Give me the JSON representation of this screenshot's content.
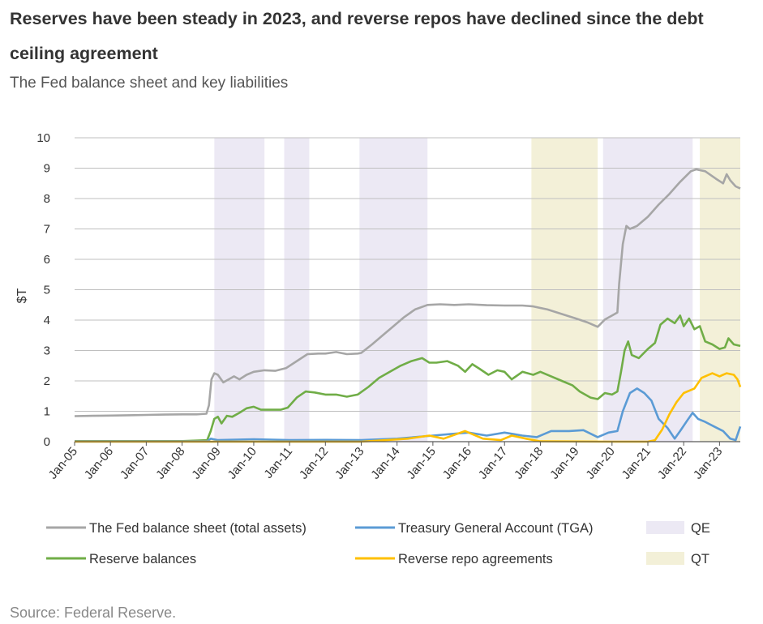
{
  "header": {
    "title": "Reserves have been steady in 2023, and reverse repos have declined since the debt ceiling agreement",
    "subtitle": "The Fed balance sheet and key liabilities"
  },
  "footer": {
    "source": "Source: Federal Reserve."
  },
  "chart_data": {
    "type": "line",
    "title": "",
    "ylabel": "$T",
    "ylim": [
      0,
      10
    ],
    "yticks": [
      0,
      1,
      2,
      3,
      4,
      5,
      6,
      7,
      8,
      9,
      10
    ],
    "xlim": [
      2005.0,
      2023.58
    ],
    "xticks": [
      {
        "x": 2005,
        "label": "Jan-05"
      },
      {
        "x": 2006,
        "label": "Jan-06"
      },
      {
        "x": 2007,
        "label": "Jan-07"
      },
      {
        "x": 2008,
        "label": "Jan-08"
      },
      {
        "x": 2009,
        "label": "Jan-09"
      },
      {
        "x": 2010,
        "label": "Jan-10"
      },
      {
        "x": 2011,
        "label": "Jan-11"
      },
      {
        "x": 2012,
        "label": "Jan-12"
      },
      {
        "x": 2013,
        "label": "Jan-13"
      },
      {
        "x": 2014,
        "label": "Jan-14"
      },
      {
        "x": 2015,
        "label": "Jan-15"
      },
      {
        "x": 2016,
        "label": "Jan-16"
      },
      {
        "x": 2017,
        "label": "Jan-17"
      },
      {
        "x": 2018,
        "label": "Jan-18"
      },
      {
        "x": 2019,
        "label": "Jan-19"
      },
      {
        "x": 2020,
        "label": "Jan-20"
      },
      {
        "x": 2021,
        "label": "Jan-21"
      },
      {
        "x": 2022,
        "label": "Jan-22"
      },
      {
        "x": 2023,
        "label": "Jan-23"
      }
    ],
    "grid": true,
    "legend_position": "bottom",
    "shaded_periods": [
      {
        "name": "QE",
        "color": "#ece9f4",
        "ranges": [
          [
            2008.9,
            2010.3
          ],
          [
            2010.85,
            2011.55
          ],
          [
            2012.95,
            2014.85
          ],
          [
            2019.75,
            2022.25
          ]
        ]
      },
      {
        "name": "QT",
        "color": "#f3f0d8",
        "ranges": [
          [
            2017.75,
            2019.6
          ],
          [
            2022.45,
            2023.58
          ]
        ]
      }
    ],
    "series": [
      {
        "name": "The Fed balance sheet (total assets)",
        "color": "#a6a6a6",
        "points": [
          [
            2005.0,
            0.84
          ],
          [
            2005.5,
            0.85
          ],
          [
            2006.0,
            0.86
          ],
          [
            2006.5,
            0.87
          ],
          [
            2007.0,
            0.88
          ],
          [
            2007.5,
            0.89
          ],
          [
            2008.0,
            0.9
          ],
          [
            2008.4,
            0.9
          ],
          [
            2008.68,
            0.92
          ],
          [
            2008.75,
            1.2
          ],
          [
            2008.82,
            2.05
          ],
          [
            2008.9,
            2.25
          ],
          [
            2009.0,
            2.2
          ],
          [
            2009.15,
            1.95
          ],
          [
            2009.3,
            2.05
          ],
          [
            2009.45,
            2.15
          ],
          [
            2009.6,
            2.05
          ],
          [
            2009.8,
            2.2
          ],
          [
            2010.0,
            2.3
          ],
          [
            2010.3,
            2.35
          ],
          [
            2010.6,
            2.33
          ],
          [
            2010.9,
            2.42
          ],
          [
            2011.2,
            2.65
          ],
          [
            2011.5,
            2.88
          ],
          [
            2011.8,
            2.9
          ],
          [
            2012.0,
            2.9
          ],
          [
            2012.3,
            2.95
          ],
          [
            2012.6,
            2.88
          ],
          [
            2012.9,
            2.9
          ],
          [
            2013.0,
            2.92
          ],
          [
            2013.3,
            3.2
          ],
          [
            2013.6,
            3.5
          ],
          [
            2013.9,
            3.8
          ],
          [
            2014.2,
            4.1
          ],
          [
            2014.5,
            4.35
          ],
          [
            2014.85,
            4.5
          ],
          [
            2015.2,
            4.52
          ],
          [
            2015.6,
            4.5
          ],
          [
            2016.0,
            4.52
          ],
          [
            2016.5,
            4.49
          ],
          [
            2017.0,
            4.48
          ],
          [
            2017.5,
            4.48
          ],
          [
            2017.8,
            4.45
          ],
          [
            2018.2,
            4.35
          ],
          [
            2018.6,
            4.2
          ],
          [
            2019.0,
            4.05
          ],
          [
            2019.3,
            3.93
          ],
          [
            2019.6,
            3.78
          ],
          [
            2019.8,
            4.02
          ],
          [
            2020.0,
            4.15
          ],
          [
            2020.15,
            4.25
          ],
          [
            2020.2,
            5.2
          ],
          [
            2020.3,
            6.5
          ],
          [
            2020.4,
            7.1
          ],
          [
            2020.5,
            7.0
          ],
          [
            2020.7,
            7.1
          ],
          [
            2021.0,
            7.4
          ],
          [
            2021.3,
            7.8
          ],
          [
            2021.6,
            8.15
          ],
          [
            2021.9,
            8.55
          ],
          [
            2022.2,
            8.9
          ],
          [
            2022.35,
            8.96
          ],
          [
            2022.6,
            8.9
          ],
          [
            2022.9,
            8.65
          ],
          [
            2023.1,
            8.5
          ],
          [
            2023.2,
            8.8
          ],
          [
            2023.3,
            8.6
          ],
          [
            2023.45,
            8.4
          ],
          [
            2023.58,
            8.33
          ]
        ]
      },
      {
        "name": "Reserve balances",
        "color": "#70ad47",
        "points": [
          [
            2005.0,
            0.02
          ],
          [
            2006.0,
            0.02
          ],
          [
            2007.0,
            0.02
          ],
          [
            2008.0,
            0.02
          ],
          [
            2008.7,
            0.05
          ],
          [
            2008.8,
            0.35
          ],
          [
            2008.9,
            0.75
          ],
          [
            2009.0,
            0.82
          ],
          [
            2009.1,
            0.6
          ],
          [
            2009.25,
            0.85
          ],
          [
            2009.4,
            0.82
          ],
          [
            2009.6,
            0.95
          ],
          [
            2009.8,
            1.1
          ],
          [
            2010.0,
            1.15
          ],
          [
            2010.2,
            1.05
          ],
          [
            2010.5,
            1.05
          ],
          [
            2010.75,
            1.05
          ],
          [
            2010.95,
            1.12
          ],
          [
            2011.2,
            1.45
          ],
          [
            2011.45,
            1.65
          ],
          [
            2011.7,
            1.62
          ],
          [
            2012.0,
            1.55
          ],
          [
            2012.3,
            1.55
          ],
          [
            2012.6,
            1.48
          ],
          [
            2012.9,
            1.55
          ],
          [
            2013.2,
            1.8
          ],
          [
            2013.5,
            2.1
          ],
          [
            2013.8,
            2.3
          ],
          [
            2014.1,
            2.5
          ],
          [
            2014.4,
            2.65
          ],
          [
            2014.7,
            2.75
          ],
          [
            2014.9,
            2.6
          ],
          [
            2015.1,
            2.6
          ],
          [
            2015.4,
            2.65
          ],
          [
            2015.7,
            2.5
          ],
          [
            2015.9,
            2.3
          ],
          [
            2016.1,
            2.55
          ],
          [
            2016.3,
            2.4
          ],
          [
            2016.55,
            2.2
          ],
          [
            2016.8,
            2.35
          ],
          [
            2017.0,
            2.3
          ],
          [
            2017.2,
            2.05
          ],
          [
            2017.5,
            2.3
          ],
          [
            2017.8,
            2.2
          ],
          [
            2018.0,
            2.3
          ],
          [
            2018.3,
            2.15
          ],
          [
            2018.6,
            2.0
          ],
          [
            2018.9,
            1.85
          ],
          [
            2019.1,
            1.65
          ],
          [
            2019.4,
            1.45
          ],
          [
            2019.6,
            1.4
          ],
          [
            2019.8,
            1.6
          ],
          [
            2020.0,
            1.55
          ],
          [
            2020.15,
            1.65
          ],
          [
            2020.25,
            2.3
          ],
          [
            2020.35,
            3.0
          ],
          [
            2020.45,
            3.3
          ],
          [
            2020.55,
            2.85
          ],
          [
            2020.75,
            2.75
          ],
          [
            2021.0,
            3.05
          ],
          [
            2021.2,
            3.25
          ],
          [
            2021.35,
            3.85
          ],
          [
            2021.55,
            4.05
          ],
          [
            2021.75,
            3.9
          ],
          [
            2021.9,
            4.15
          ],
          [
            2022.0,
            3.8
          ],
          [
            2022.15,
            4.05
          ],
          [
            2022.3,
            3.7
          ],
          [
            2022.45,
            3.8
          ],
          [
            2022.6,
            3.3
          ],
          [
            2022.8,
            3.2
          ],
          [
            2023.0,
            3.05
          ],
          [
            2023.15,
            3.1
          ],
          [
            2023.25,
            3.4
          ],
          [
            2023.4,
            3.2
          ],
          [
            2023.58,
            3.15
          ]
        ]
      },
      {
        "name": "Treasury General Account (TGA)",
        "color": "#5b9bd5",
        "points": [
          [
            2005.0,
            0.01
          ],
          [
            2008.7,
            0.01
          ],
          [
            2008.8,
            0.1
          ],
          [
            2009.0,
            0.05
          ],
          [
            2010.0,
            0.08
          ],
          [
            2011.0,
            0.05
          ],
          [
            2012.0,
            0.06
          ],
          [
            2013.0,
            0.05
          ],
          [
            2014.0,
            0.1
          ],
          [
            2015.0,
            0.2
          ],
          [
            2015.5,
            0.25
          ],
          [
            2016.0,
            0.3
          ],
          [
            2016.5,
            0.2
          ],
          [
            2017.0,
            0.3
          ],
          [
            2017.5,
            0.2
          ],
          [
            2017.9,
            0.15
          ],
          [
            2018.3,
            0.35
          ],
          [
            2018.8,
            0.35
          ],
          [
            2019.2,
            0.38
          ],
          [
            2019.6,
            0.15
          ],
          [
            2019.9,
            0.3
          ],
          [
            2020.15,
            0.35
          ],
          [
            2020.3,
            1.0
          ],
          [
            2020.5,
            1.6
          ],
          [
            2020.7,
            1.75
          ],
          [
            2020.9,
            1.6
          ],
          [
            2021.1,
            1.35
          ],
          [
            2021.3,
            0.75
          ],
          [
            2021.55,
            0.45
          ],
          [
            2021.75,
            0.1
          ],
          [
            2021.9,
            0.35
          ],
          [
            2022.1,
            0.7
          ],
          [
            2022.25,
            0.95
          ],
          [
            2022.4,
            0.75
          ],
          [
            2022.6,
            0.65
          ],
          [
            2022.85,
            0.5
          ],
          [
            2023.1,
            0.35
          ],
          [
            2023.3,
            0.1
          ],
          [
            2023.45,
            0.05
          ],
          [
            2023.58,
            0.5
          ]
        ]
      },
      {
        "name": "Reverse repo agreements",
        "color": "#ffc000",
        "points": [
          [
            2005.0,
            0.0
          ],
          [
            2013.0,
            0.0
          ],
          [
            2013.7,
            0.05
          ],
          [
            2014.3,
            0.1
          ],
          [
            2014.9,
            0.2
          ],
          [
            2015.3,
            0.1
          ],
          [
            2015.9,
            0.35
          ],
          [
            2016.4,
            0.1
          ],
          [
            2016.9,
            0.05
          ],
          [
            2017.2,
            0.2
          ],
          [
            2017.6,
            0.1
          ],
          [
            2018.0,
            0.01
          ],
          [
            2020.0,
            0.0
          ],
          [
            2021.0,
            0.0
          ],
          [
            2021.2,
            0.05
          ],
          [
            2021.4,
            0.4
          ],
          [
            2021.6,
            0.9
          ],
          [
            2021.8,
            1.3
          ],
          [
            2022.0,
            1.6
          ],
          [
            2022.3,
            1.75
          ],
          [
            2022.5,
            2.1
          ],
          [
            2022.8,
            2.25
          ],
          [
            2023.0,
            2.15
          ],
          [
            2023.2,
            2.25
          ],
          [
            2023.4,
            2.2
          ],
          [
            2023.5,
            2.05
          ],
          [
            2023.58,
            1.8
          ]
        ]
      }
    ]
  }
}
